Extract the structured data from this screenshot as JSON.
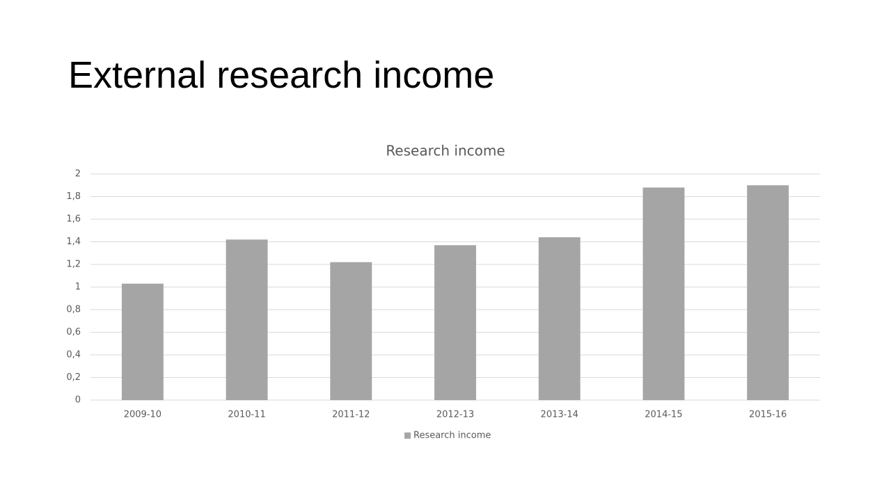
{
  "slide": {
    "title": "External research income"
  },
  "chart_data": {
    "type": "bar",
    "title": "Research income",
    "categories": [
      "2009-10",
      "2010-11",
      "2011-12",
      "2012-13",
      "2013-14",
      "2014-15",
      "2015-16"
    ],
    "series": [
      {
        "name": "Research income",
        "color": "#a5a5a5",
        "values": [
          1.03,
          1.42,
          1.22,
          1.37,
          1.44,
          1.88,
          1.9
        ]
      }
    ],
    "ylim": [
      0,
      2
    ],
    "yticks": [
      0,
      {
        "value": 0.2,
        "label": "0,2"
      },
      {
        "value": 0.4,
        "label": "0,4"
      },
      {
        "value": 0.6,
        "label": "0,6"
      },
      {
        "value": 0.8,
        "label": "0,8"
      },
      1,
      {
        "value": 1.2,
        "label": "1,2"
      },
      {
        "value": 1.4,
        "label": "1,4"
      },
      {
        "value": 1.6,
        "label": "1,6"
      },
      {
        "value": 1.8,
        "label": "1,8"
      },
      2
    ],
    "grid": true,
    "legend": "bottom"
  }
}
